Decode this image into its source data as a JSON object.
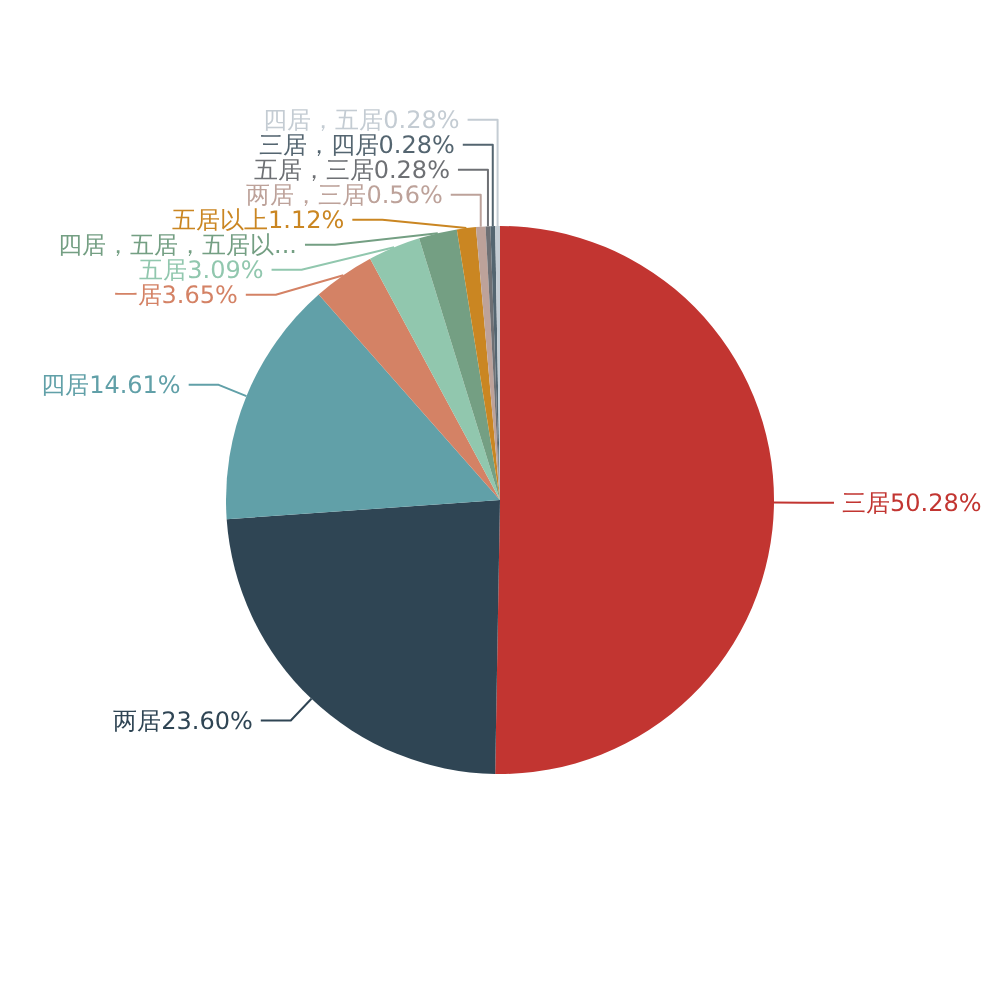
{
  "chart_data": {
    "type": "pie",
    "categories": [
      "三居",
      "两居",
      "四居",
      "一居",
      "五居",
      "四居，五居，五居以...",
      "五居以上",
      "两居，三居",
      "五居，三居",
      "三居，四居",
      "四居，五居"
    ],
    "values": [
      50.28,
      23.6,
      14.61,
      3.65,
      3.09,
      2.25,
      1.12,
      0.56,
      0.28,
      0.28,
      0.28
    ],
    "colors": [
      "#c23531",
      "#2f4554",
      "#61a0a8",
      "#d48265",
      "#91c7ae",
      "#749f83",
      "#ca8622",
      "#bda29a",
      "#6e7074",
      "#546570",
      "#c4ccd3"
    ],
    "value_labels": [
      "50.28%",
      "23.60%",
      "14.61%",
      "3.65%",
      "3.09%",
      null,
      "1.12%",
      "0.56%",
      "0.28%",
      "0.28%",
      "0.28%"
    ]
  }
}
